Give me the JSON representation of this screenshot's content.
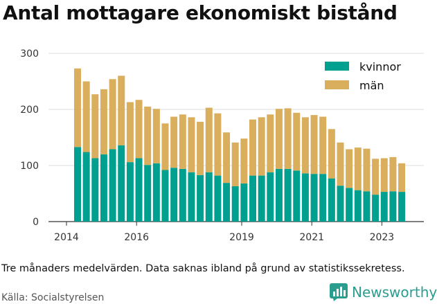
{
  "title": "Antal mottagare ekonomiskt bistånd",
  "caption": "Tre månaders medelvärden. Data saknas ibland på grund av statistikssekretess.",
  "source": "Källa: Socialstyrelsen",
  "logo_text": "Newsworthy",
  "colors": {
    "kvinnor": "#00A090",
    "man": "#D9AE5C",
    "logo": "#2a9d8f"
  },
  "chart_data": {
    "type": "bar",
    "stacked": true,
    "title": "Antal mottagare ekonomiskt bistånd",
    "ylim": [
      0,
      300
    ],
    "y_ticks": [
      0,
      100,
      200,
      300
    ],
    "x_ticks": [
      "2014",
      "2016",
      "2019",
      "2021",
      "2023"
    ],
    "legend_position": "top-right",
    "grid": "horizontal",
    "series": [
      {
        "name": "kvinnor",
        "values": [
          133,
          124,
          113,
          120,
          129,
          136,
          106,
          113,
          101,
          104,
          92,
          96,
          94,
          88,
          83,
          88,
          82,
          69,
          63,
          68,
          82,
          82,
          88,
          94,
          94,
          91,
          86,
          85,
          85,
          77,
          64,
          60,
          56,
          54,
          48,
          53,
          54,
          53
        ]
      },
      {
        "name": "män",
        "values": [
          140,
          126,
          114,
          116,
          125,
          124,
          107,
          104,
          104,
          97,
          83,
          91,
          97,
          98,
          95,
          115,
          111,
          90,
          78,
          80,
          100,
          104,
          103,
          107,
          108,
          103,
          100,
          105,
          102,
          88,
          77,
          69,
          76,
          76,
          64,
          60,
          61,
          51
        ]
      }
    ]
  }
}
